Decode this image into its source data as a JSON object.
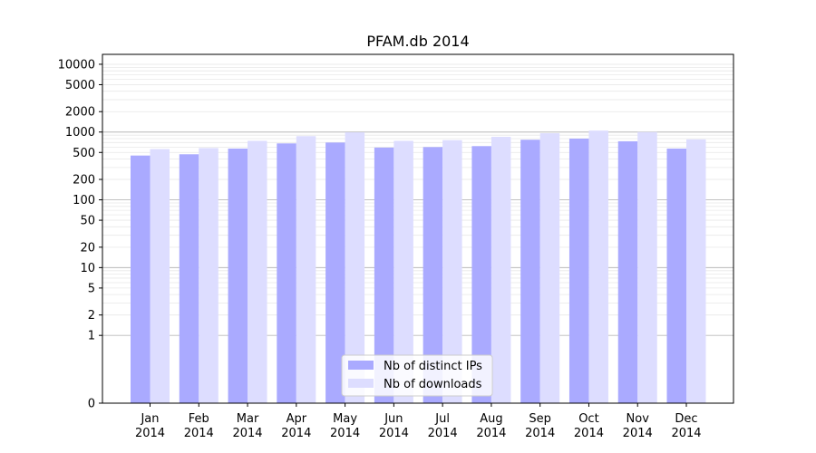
{
  "chart_data": {
    "type": "bar",
    "title": "PFAM.db 2014",
    "xlabel": "",
    "ylabel": "",
    "yscale": "symlog",
    "ylim": [
      0,
      14000
    ],
    "y_ticks": [
      0,
      1,
      2,
      5,
      10,
      20,
      50,
      100,
      200,
      500,
      1000,
      2000,
      5000,
      10000
    ],
    "y_tick_labels": [
      "0",
      "1",
      "2",
      "5",
      "10",
      "20",
      "50",
      "100",
      "200",
      "500",
      "1000",
      "2000",
      "5000",
      "10000"
    ],
    "grid": true,
    "legend_position": "lower center",
    "categories": [
      [
        "Jan",
        "2014"
      ],
      [
        "Feb",
        "2014"
      ],
      [
        "Mar",
        "2014"
      ],
      [
        "Apr",
        "2014"
      ],
      [
        "May",
        "2014"
      ],
      [
        "Jun",
        "2014"
      ],
      [
        "Jul",
        "2014"
      ],
      [
        "Aug",
        "2014"
      ],
      [
        "Sep",
        "2014"
      ],
      [
        "Oct",
        "2014"
      ],
      [
        "Nov",
        "2014"
      ],
      [
        "Dec",
        "2014"
      ]
    ],
    "series": [
      {
        "name": "Nb of distinct IPs",
        "color": "#aaaaff",
        "values": [
          450,
          470,
          570,
          680,
          700,
          590,
          600,
          620,
          770,
          800,
          730,
          570
        ]
      },
      {
        "name": "Nb of downloads",
        "color": "#ddddff",
        "values": [
          560,
          580,
          740,
          870,
          990,
          740,
          760,
          850,
          960,
          1050,
          1000,
          780
        ]
      }
    ]
  }
}
